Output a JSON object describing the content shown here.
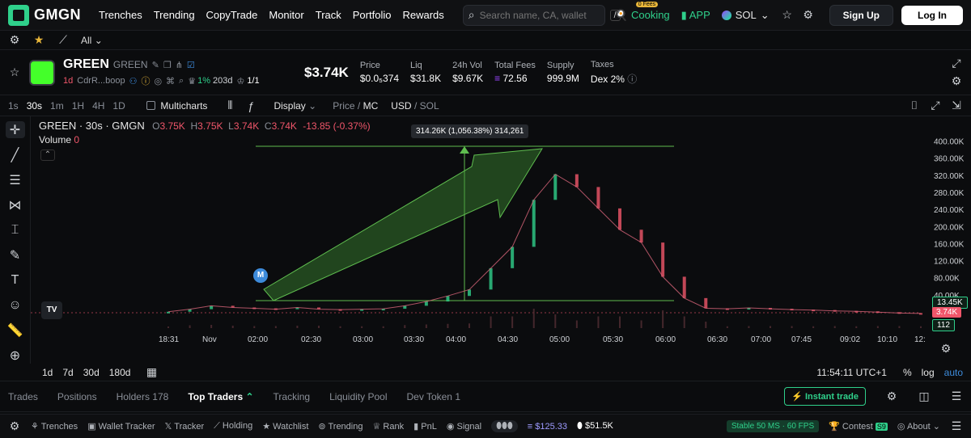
{
  "nav": {
    "logo": "GMGN",
    "links": [
      "Trenches",
      "Trending",
      "CopyTrade",
      "Monitor",
      "Track",
      "Portfolio",
      "Rewards"
    ],
    "search_placeholder": "Search name, CA, wallet",
    "search_key": "/",
    "cooking": "Cooking",
    "cooking_badge": "0 Fees",
    "app": "APP",
    "chain": "SOL",
    "signup": "Sign Up",
    "login": "Log In"
  },
  "subbar": {
    "filter": "All"
  },
  "token": {
    "name": "GREEN",
    "symbol": "GREEN",
    "age": "1d",
    "ca": "CdrR...boop",
    "holders_pct": "1%",
    "days": "203d",
    "ratio": "1/1",
    "market_cap": "$3.74K",
    "stats": [
      {
        "label": "Price",
        "value": "$0.0₅374"
      },
      {
        "label": "Liq",
        "value": "$31.8K"
      },
      {
        "label": "24h Vol",
        "value": "$9.67K"
      },
      {
        "label": "Total Fees",
        "value": "72.56"
      },
      {
        "label": "Supply",
        "value": "999.9M"
      },
      {
        "label": "Taxes",
        "value": "Dex 2%"
      }
    ]
  },
  "chart_toolbar": {
    "timeframes": [
      "1s",
      "30s",
      "1m",
      "1H",
      "4H",
      "1D"
    ],
    "active_timeframe": "30s",
    "multicharts": "Multicharts",
    "display": "Display",
    "price_mc_a": "Price",
    "price_mc_b": "MC",
    "usd_sol_a": "USD",
    "usd_sol_b": "SOL"
  },
  "legend": {
    "title": "GREEN · 30s · GMGN",
    "o": "3.75K",
    "h": "3.75K",
    "l": "3.74K",
    "c": "3.74K",
    "change": "-13.85 (-0.37%)",
    "volume_label": "Volume",
    "volume_value": "0"
  },
  "measure_label": "314.26K (1,056.38%) 314,261",
  "badge_m": "M",
  "tv_logo": "TV",
  "price_tags": {
    "green": "13.45K",
    "red": "3.74K",
    "vol": "112"
  },
  "chart_data": {
    "type": "line",
    "y_ticks": [
      "400.00K",
      "360.00K",
      "320.00K",
      "280.00K",
      "240.00K",
      "200.00K",
      "160.00K",
      "120.00K",
      "80.00K",
      "40.00K"
    ],
    "x_ticks": [
      "18:31",
      "Nov",
      "02:00",
      "02:30",
      "03:00",
      "03:30",
      "04:00",
      "04:30",
      "05:00",
      "05:30",
      "06:00",
      "06:30",
      "07:00",
      "07:45",
      "09:02",
      "10:10",
      "12:"
    ],
    "x": [
      "01:45",
      "02:00",
      "02:05",
      "02:15",
      "02:30",
      "02:45",
      "03:00",
      "03:15",
      "03:30",
      "03:45",
      "04:00",
      "04:10",
      "04:20",
      "04:30",
      "04:35",
      "04:40",
      "04:45",
      "04:50",
      "04:55",
      "05:00",
      "05:05",
      "05:10",
      "05:15",
      "05:20",
      "05:25",
      "05:30",
      "05:40",
      "05:50",
      "06:00",
      "06:30",
      "07:00",
      "08:00",
      "09:00",
      "10:00",
      "11:00",
      "12:00"
    ],
    "values": [
      8,
      14,
      22,
      18,
      16,
      14,
      18,
      14,
      13,
      14,
      15,
      22,
      32,
      45,
      60,
      110,
      160,
      270,
      330,
      300,
      250,
      200,
      170,
      90,
      40,
      16,
      15,
      17,
      15,
      13,
      12,
      10,
      9,
      7,
      5,
      4
    ],
    "ylabel": "",
    "ylim": [
      0,
      420
    ]
  },
  "range_bar": {
    "ranges": [
      "1d",
      "7d",
      "30d",
      "180d"
    ],
    "clock": "11:54:11 UTC+1",
    "pct": "%",
    "log": "log",
    "auto": "auto"
  },
  "tabs": [
    "Trades",
    "Positions",
    "Holders 178",
    "Top Traders",
    "Tracking",
    "Liquidity Pool",
    "Dev Token 1"
  ],
  "active_tab": "Top Traders",
  "instant_trade": "Instant trade",
  "footer": {
    "items": [
      "Trenches",
      "Wallet Tracker",
      "Tracker",
      "Holding",
      "Watchlist",
      "Trending",
      "Rank",
      "PnL",
      "Signal"
    ],
    "balance_a": "$125.33",
    "balance_b": "$51.5K",
    "stable": "Stable 50 MS · 60 FPS",
    "contest": "Contest",
    "contest_badge": "S9",
    "about": "About"
  },
  "colors": {
    "accent": "#2fd08b",
    "down": "#f0566a",
    "bg": "#0b0c0e"
  }
}
